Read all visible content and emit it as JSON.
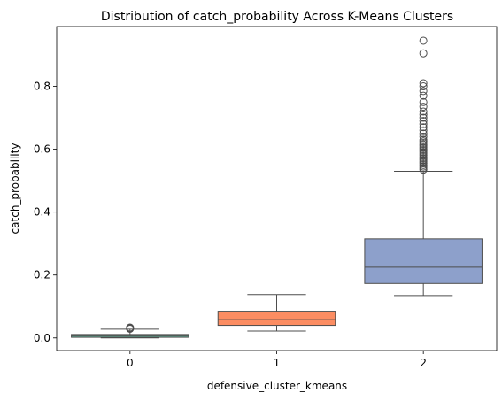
{
  "chart_data": {
    "type": "box",
    "title": "Distribution of catch_probability Across K-Means Clusters",
    "xlabel": "defensive_cluster_kmeans",
    "ylabel": "catch_probability",
    "categories": [
      "0",
      "1",
      "2"
    ],
    "ylim": [
      -0.04,
      0.99
    ],
    "yticks": [
      0.0,
      0.2,
      0.4,
      0.6,
      0.8
    ],
    "ytick_labels": [
      "0.0",
      "0.2",
      "0.4",
      "0.6",
      "0.8"
    ],
    "boxes": [
      {
        "category": "0",
        "color": "#66c2a5",
        "whisker_low": 0.0,
        "q1": 0.002,
        "median": 0.006,
        "q3": 0.011,
        "whisker_high": 0.028,
        "outliers": [
          0.029,
          0.031,
          0.033
        ]
      },
      {
        "category": "1",
        "color": "#fc8d62",
        "whisker_low": 0.022,
        "q1": 0.04,
        "median": 0.058,
        "q3": 0.085,
        "whisker_high": 0.138,
        "outliers": []
      },
      {
        "category": "2",
        "color": "#8da0cb",
        "whisker_low": 0.135,
        "q1": 0.173,
        "median": 0.225,
        "q3": 0.315,
        "whisker_high": 0.53,
        "outliers": [
          0.535,
          0.54,
          0.545,
          0.55,
          0.555,
          0.56,
          0.565,
          0.57,
          0.575,
          0.58,
          0.585,
          0.59,
          0.595,
          0.6,
          0.605,
          0.61,
          0.615,
          0.62,
          0.625,
          0.63,
          0.64,
          0.65,
          0.66,
          0.67,
          0.68,
          0.69,
          0.7,
          0.71,
          0.72,
          0.735,
          0.75,
          0.77,
          0.785,
          0.8,
          0.81,
          0.905,
          0.945
        ]
      }
    ]
  }
}
